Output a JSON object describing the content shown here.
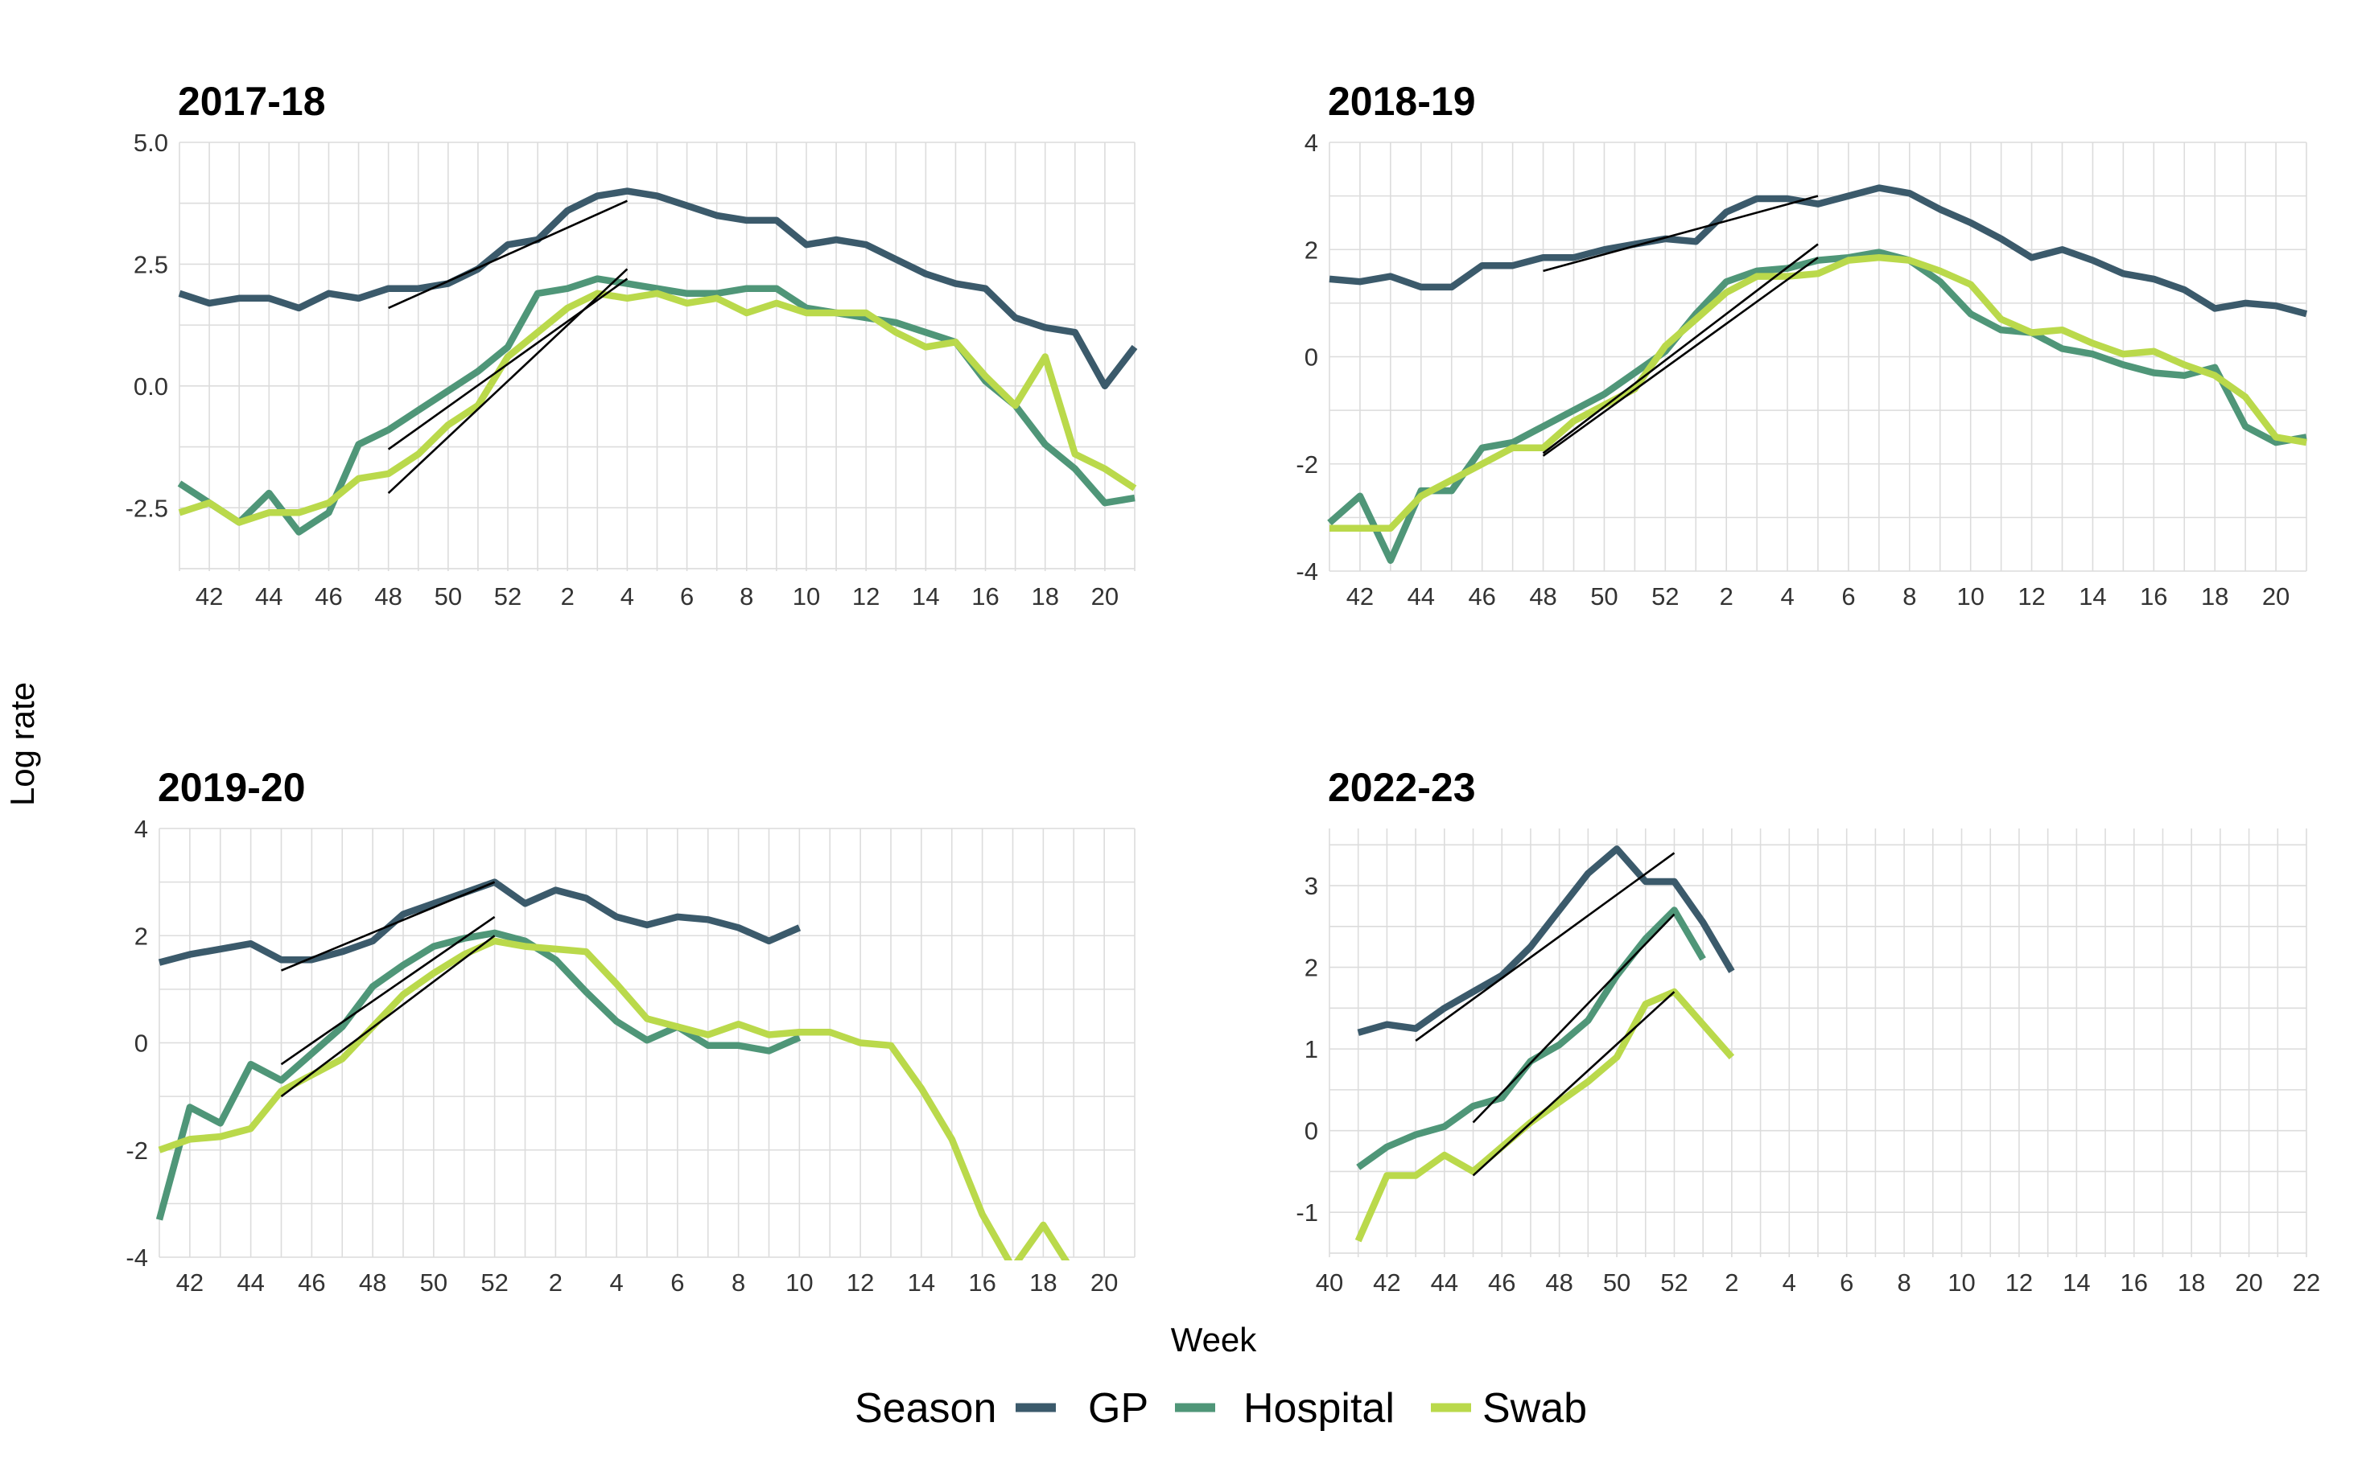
{
  "figure": {
    "xlabel": "Week",
    "ylabel": "Log rate",
    "legend": {
      "title": "Season",
      "position": "bottom",
      "entries": [
        {
          "name": "GP",
          "color": "#3b5a6b"
        },
        {
          "name": "Hospital",
          "color": "#4f9678"
        },
        {
          "name": "Swab",
          "color": "#bad94b"
        }
      ]
    }
  },
  "chart_data": [
    {
      "type": "line",
      "title": "2017-18",
      "week_labels": [
        "41",
        "42",
        "43",
        "44",
        "45",
        "46",
        "47",
        "48",
        "49",
        "50",
        "51",
        "52",
        "1",
        "2",
        "3",
        "4",
        "5",
        "6",
        "7",
        "8",
        "9",
        "10",
        "11",
        "12",
        "13",
        "14",
        "15",
        "16",
        "17",
        "18",
        "19",
        "20",
        "21"
      ],
      "xticks": [
        "42",
        "44",
        "46",
        "48",
        "50",
        "52",
        "2",
        "4",
        "6",
        "8",
        "10",
        "12",
        "14",
        "16",
        "18",
        "20"
      ],
      "ylim": [
        -3.8,
        5.0
      ],
      "yticks": [
        -2.5,
        0.0,
        2.5,
        5.0
      ],
      "ytick_labels": [
        "-2.5",
        "0.0",
        "2.5",
        "5.0"
      ],
      "grid": true,
      "series": [
        {
          "name": "GP",
          "values": [
            1.9,
            1.7,
            1.8,
            1.8,
            1.6,
            1.9,
            1.8,
            2.0,
            2.0,
            2.1,
            2.4,
            2.9,
            3.0,
            3.6,
            3.9,
            4.0,
            3.9,
            3.7,
            3.5,
            3.4,
            3.4,
            2.9,
            3.0,
            2.9,
            2.6,
            2.3,
            2.1,
            2.0,
            1.4,
            1.2,
            1.1,
            0.0,
            0.8
          ]
        },
        {
          "name": "Hospital",
          "values": [
            -2.0,
            -2.4,
            -2.8,
            -2.2,
            -3.0,
            -2.6,
            -1.2,
            -0.9,
            -0.5,
            -0.1,
            0.3,
            0.8,
            1.9,
            2.0,
            2.2,
            2.1,
            2.0,
            1.9,
            1.9,
            2.0,
            2.0,
            1.6,
            1.5,
            1.4,
            1.3,
            1.1,
            0.9,
            0.1,
            -0.4,
            -1.2,
            -1.7,
            -2.4,
            -2.3
          ]
        },
        {
          "name": "Swab",
          "values": [
            -2.6,
            -2.4,
            -2.8,
            -2.6,
            -2.6,
            -2.4,
            -1.9,
            -1.8,
            -1.4,
            -0.8,
            -0.4,
            0.6,
            1.1,
            1.6,
            1.9,
            1.8,
            1.9,
            1.7,
            1.8,
            1.5,
            1.7,
            1.5,
            1.5,
            1.5,
            1.1,
            0.8,
            0.9,
            0.2,
            -0.4,
            0.6,
            -1.4,
            -1.7,
            -2.1
          ]
        }
      ],
      "fits": [
        {
          "x": [
            7,
            15
          ],
          "y": [
            1.6,
            3.8
          ]
        },
        {
          "x": [
            7,
            15
          ],
          "y": [
            -1.3,
            2.2
          ]
        },
        {
          "x": [
            7,
            15
          ],
          "y": [
            -2.2,
            2.4
          ]
        }
      ]
    },
    {
      "type": "line",
      "title": "2018-19",
      "week_labels": [
        "41",
        "42",
        "43",
        "44",
        "45",
        "46",
        "47",
        "48",
        "49",
        "50",
        "51",
        "52",
        "1",
        "2",
        "3",
        "4",
        "5",
        "6",
        "7",
        "8",
        "9",
        "10",
        "11",
        "12",
        "13",
        "14",
        "15",
        "16",
        "17",
        "18",
        "19",
        "20",
        "21"
      ],
      "xticks": [
        "42",
        "44",
        "46",
        "48",
        "50",
        "52",
        "2",
        "4",
        "6",
        "8",
        "10",
        "12",
        "14",
        "16",
        "18",
        "20"
      ],
      "ylim": [
        -4,
        4
      ],
      "yticks": [
        -4,
        -2,
        0,
        2,
        4
      ],
      "ytick_labels": [
        "-4",
        "-2",
        "0",
        "2",
        "4"
      ],
      "grid": true,
      "series": [
        {
          "name": "GP",
          "values": [
            1.45,
            1.4,
            1.5,
            1.3,
            1.3,
            1.7,
            1.7,
            1.85,
            1.85,
            2.0,
            2.1,
            2.2,
            2.15,
            2.7,
            2.95,
            2.95,
            2.85,
            3.0,
            3.15,
            3.05,
            2.75,
            2.5,
            2.2,
            1.85,
            2.0,
            1.8,
            1.55,
            1.45,
            1.25,
            0.9,
            1.0,
            0.95,
            0.8
          ]
        },
        {
          "name": "Hospital",
          "values": [
            -3.1,
            -2.6,
            -3.8,
            -2.5,
            -2.5,
            -1.7,
            -1.6,
            -1.3,
            -1.0,
            -0.7,
            -0.3,
            0.1,
            0.8,
            1.4,
            1.6,
            1.65,
            1.8,
            1.85,
            1.95,
            1.8,
            1.4,
            0.8,
            0.5,
            0.45,
            0.15,
            0.05,
            -0.15,
            -0.3,
            -0.35,
            -0.2,
            -1.3,
            -1.6,
            -1.5
          ]
        },
        {
          "name": "Swab",
          "values": [
            -3.2,
            -3.2,
            -3.2,
            -2.6,
            -2.3,
            -2.0,
            -1.7,
            -1.7,
            -1.2,
            -0.9,
            -0.6,
            0.2,
            0.7,
            1.2,
            1.5,
            1.5,
            1.55,
            1.8,
            1.85,
            1.8,
            1.6,
            1.35,
            0.7,
            0.45,
            0.5,
            0.25,
            0.05,
            0.1,
            -0.15,
            -0.35,
            -0.75,
            -1.5,
            -1.6
          ]
        }
      ],
      "fits": [
        {
          "x": [
            7,
            16
          ],
          "y": [
            1.6,
            3.0
          ]
        },
        {
          "x": [
            7,
            16
          ],
          "y": [
            -1.8,
            2.1
          ]
        },
        {
          "x": [
            7,
            16
          ],
          "y": [
            -1.85,
            1.85
          ]
        }
      ]
    },
    {
      "type": "line",
      "title": "2019-20",
      "week_labels": [
        "41",
        "42",
        "43",
        "44",
        "45",
        "46",
        "47",
        "48",
        "49",
        "50",
        "51",
        "52",
        "1",
        "2",
        "3",
        "4",
        "5",
        "6",
        "7",
        "8",
        "9",
        "10",
        "11",
        "12",
        "13",
        "14",
        "15",
        "16",
        "17",
        "18",
        "19",
        "20",
        "21"
      ],
      "xticks": [
        "42",
        "44",
        "46",
        "48",
        "50",
        "52",
        "2",
        "4",
        "6",
        "8",
        "10",
        "12",
        "14",
        "16",
        "18",
        "20"
      ],
      "ylim": [
        -4,
        4
      ],
      "yticks": [
        -4,
        -2,
        0,
        2,
        4
      ],
      "ytick_labels": [
        "-4",
        "-2",
        "0",
        "2",
        "4"
      ],
      "grid": true,
      "series": [
        {
          "name": "GP",
          "values": [
            1.5,
            1.65,
            1.75,
            1.85,
            1.55,
            1.55,
            1.7,
            1.9,
            2.4,
            2.6,
            2.8,
            3.0,
            2.6,
            2.85,
            2.7,
            2.35,
            2.2,
            2.35,
            2.3,
            2.15,
            1.9,
            2.15
          ]
        },
        {
          "name": "Hospital",
          "values": [
            -3.3,
            -1.2,
            -1.5,
            -0.4,
            -0.7,
            -0.2,
            0.3,
            1.05,
            1.45,
            1.8,
            1.95,
            2.05,
            1.9,
            1.55,
            0.95,
            0.4,
            0.05,
            0.3,
            -0.05,
            -0.05,
            -0.15,
            0.1
          ]
        },
        {
          "name": "Swab",
          "values": [
            -2.0,
            -1.8,
            -1.75,
            -1.6,
            -0.9,
            -0.6,
            -0.3,
            0.3,
            0.9,
            1.3,
            1.65,
            1.9,
            1.8,
            1.75,
            1.7,
            1.1,
            0.45,
            0.3,
            0.15,
            0.35,
            0.15,
            0.2,
            0.2,
            0.0,
            -0.05,
            -0.85,
            -1.8,
            -3.2,
            -4.2,
            -3.4,
            -4.3
          ]
        }
      ],
      "fits": [
        {
          "x": [
            4,
            11
          ],
          "y": [
            1.35,
            3.0
          ]
        },
        {
          "x": [
            4,
            11
          ],
          "y": [
            -0.4,
            2.35
          ]
        },
        {
          "x": [
            4,
            11
          ],
          "y": [
            -1.0,
            2.0
          ]
        }
      ]
    },
    {
      "type": "line",
      "title": "2022-23",
      "week_labels": [
        "40",
        "41",
        "42",
        "43",
        "44",
        "45",
        "46",
        "47",
        "48",
        "49",
        "50",
        "51",
        "52",
        "1",
        "2",
        "3",
        "4",
        "5",
        "6",
        "7",
        "8",
        "9",
        "10",
        "11",
        "12",
        "13",
        "14",
        "15",
        "16",
        "17",
        "18",
        "19",
        "20",
        "21",
        "22"
      ],
      "xticks": [
        "40",
        "42",
        "44",
        "46",
        "48",
        "50",
        "52",
        "2",
        "4",
        "6",
        "8",
        "10",
        "12",
        "14",
        "16",
        "18",
        "20",
        "22"
      ],
      "ylim": [
        -1.55,
        3.7
      ],
      "yticks": [
        -1,
        0,
        1,
        2,
        3
      ],
      "ytick_labels": [
        "-1",
        "0",
        "1",
        "2",
        "3"
      ],
      "grid": true,
      "series": [
        {
          "name": "GP",
          "values": [
            null,
            1.2,
            1.3,
            1.25,
            1.5,
            1.7,
            1.9,
            2.25,
            2.7,
            3.15,
            3.45,
            3.05,
            3.05,
            2.55,
            1.95
          ]
        },
        {
          "name": "Hospital",
          "values": [
            null,
            -0.45,
            -0.2,
            -0.05,
            0.05,
            0.3,
            0.4,
            0.85,
            1.05,
            1.35,
            1.9,
            2.35,
            2.7,
            2.1
          ]
        },
        {
          "name": "Swab",
          "values": [
            null,
            -1.35,
            -0.55,
            -0.55,
            -0.3,
            -0.5,
            -0.2,
            0.1,
            0.35,
            0.6,
            0.9,
            1.55,
            1.7,
            1.3,
            0.9
          ]
        }
      ],
      "fits": [
        {
          "x": [
            3,
            12
          ],
          "y": [
            1.1,
            3.4
          ]
        },
        {
          "x": [
            5,
            12
          ],
          "y": [
            0.1,
            2.65
          ]
        },
        {
          "x": [
            5,
            12
          ],
          "y": [
            -0.55,
            1.7
          ]
        }
      ]
    }
  ]
}
